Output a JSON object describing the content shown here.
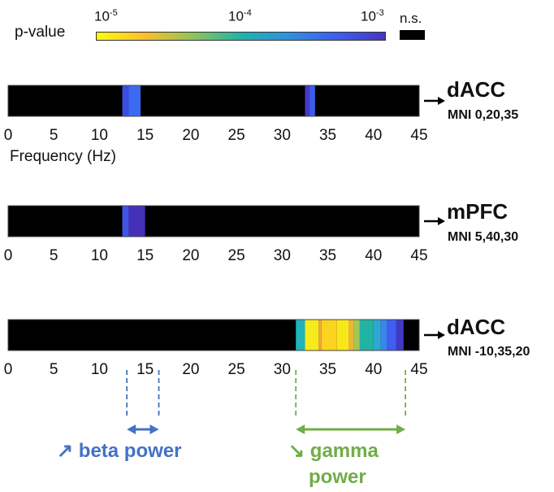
{
  "legend": {
    "title": "p-value",
    "ticks": [
      {
        "base": "10",
        "exp": "-5"
      },
      {
        "base": "10",
        "exp": "-4"
      },
      {
        "base": "10",
        "exp": "-3"
      }
    ],
    "ns_label": "n.s.",
    "ns_color": "#000000",
    "colormap": [
      "#f9fb0e",
      "#fdbf2c",
      "#8fc45a",
      "#20b3aa",
      "#2f8fe0",
      "#3d5ef0",
      "#4735c2"
    ]
  },
  "chart_data": {
    "type": "heatmap",
    "x_range": [
      0,
      45
    ],
    "x_ticks": [
      "0",
      "5",
      "10",
      "15",
      "20",
      "25",
      "30",
      "35",
      "40",
      "45"
    ],
    "xlabel": "Frequency (Hz)",
    "background_color": "#000000",
    "rows": [
      {
        "region": "dACC",
        "coords": "MNI 0,20,35",
        "segments": [
          {
            "start": 12.5,
            "end": 13.2,
            "color": "#3b4fe0"
          },
          {
            "start": 13.2,
            "end": 14.5,
            "color": "#3c6bf2"
          },
          {
            "start": 32.5,
            "end": 33.0,
            "color": "#4738c8"
          },
          {
            "start": 33.0,
            "end": 33.6,
            "color": "#3c5ced"
          }
        ]
      },
      {
        "region": "mPFC",
        "coords": "MNI 5,40,30",
        "segments": [
          {
            "start": 12.5,
            "end": 13.2,
            "color": "#3e55e8"
          },
          {
            "start": 13.2,
            "end": 15.0,
            "color": "#4431b8"
          }
        ]
      },
      {
        "region": "dACC",
        "coords": "MNI -10,35,20",
        "segments": [
          {
            "start": 31.5,
            "end": 32.5,
            "color": "#1fb4b9"
          },
          {
            "start": 32.5,
            "end": 34.0,
            "color": "#f7ea1c"
          },
          {
            "start": 34.0,
            "end": 34.3,
            "color": "#f4a640"
          },
          {
            "start": 34.3,
            "end": 36.0,
            "color": "#fad41e"
          },
          {
            "start": 36.0,
            "end": 37.3,
            "color": "#f8e71a"
          },
          {
            "start": 37.3,
            "end": 37.8,
            "color": "#eeb535"
          },
          {
            "start": 37.8,
            "end": 38.5,
            "color": "#a5c655"
          },
          {
            "start": 38.5,
            "end": 40.0,
            "color": "#23b3a5"
          },
          {
            "start": 40.0,
            "end": 40.8,
            "color": "#2fa7d2"
          },
          {
            "start": 40.8,
            "end": 41.5,
            "color": "#3c84ec"
          },
          {
            "start": 41.5,
            "end": 42.5,
            "color": "#3e5fef"
          },
          {
            "start": 42.5,
            "end": 43.3,
            "color": "#4238c6"
          }
        ]
      }
    ],
    "annotations": [
      {
        "text": "↗ beta power",
        "lines": [
          "↗ beta power"
        ],
        "range": [
          13.0,
          16.5
        ],
        "color": "#4472c4"
      },
      {
        "text": "↘ gamma power",
        "lines": [
          "↘ gamma",
          "power"
        ],
        "range": [
          31.5,
          43.5
        ],
        "color": "#70ad47"
      }
    ]
  }
}
